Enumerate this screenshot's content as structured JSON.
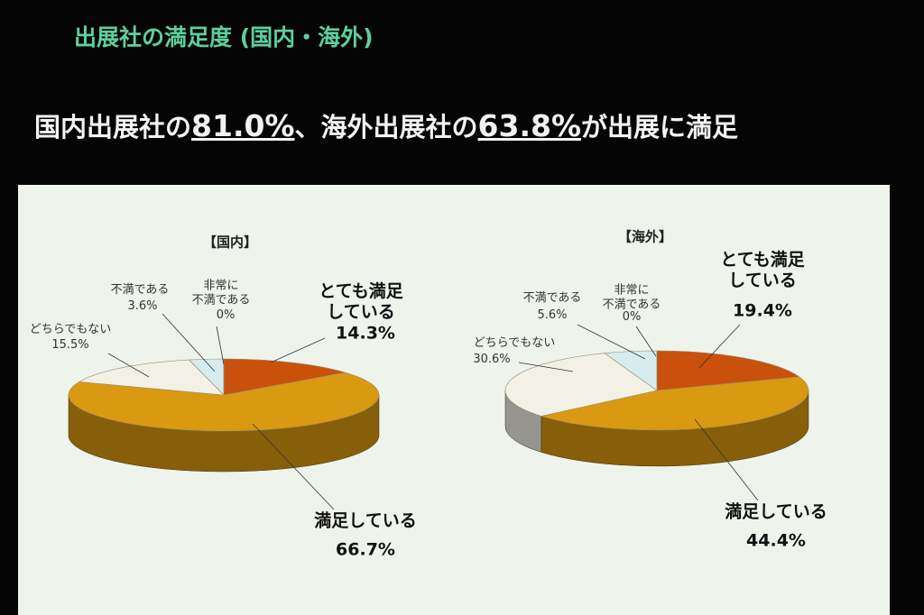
{
  "slide": {
    "title": "出展社の満足度 (国内・海外)",
    "headline": [
      "国内出展社の",
      "81.0%",
      "、海外出展社の",
      "63.8%",
      "が出展に満足"
    ]
  },
  "chart_data": [
    {
      "type": "pie",
      "title": "【国内】",
      "categories": [
        "とても満足\nしている",
        "満足している",
        "どちらでもない",
        "不満である",
        "非常に\n不満である"
      ],
      "values": [
        14.3,
        66.7,
        15.5,
        3.6,
        0
      ],
      "value_labels": [
        "14.3%",
        "66.7%",
        "15.5%",
        "3.6%",
        "0%"
      ],
      "colors": [
        "#c9510c",
        "#d99a12",
        "#f3f1e6",
        "#d6edef",
        "#b8dfe6"
      ]
    },
    {
      "type": "pie",
      "title": "【海外】",
      "categories": [
        "とても満足\nしている",
        "満足している",
        "どちらでもない",
        "不満である",
        "非常に\n不満である"
      ],
      "values": [
        19.4,
        44.4,
        30.6,
        5.6,
        0
      ],
      "value_labels": [
        "19.4%",
        "44.4%",
        "30.6%",
        "5.6%",
        "0%"
      ],
      "colors": [
        "#c9510c",
        "#d99a12",
        "#f3f1e6",
        "#d6edef",
        "#b8dfe6"
      ]
    }
  ]
}
